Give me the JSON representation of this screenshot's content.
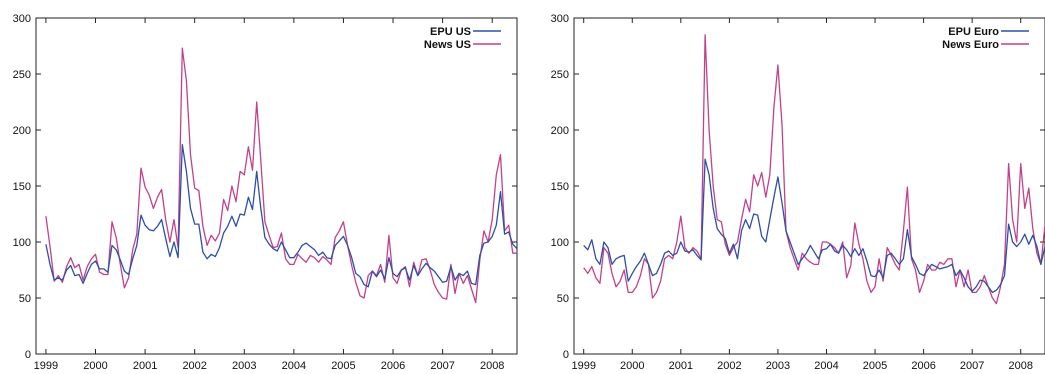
{
  "chart_data": [
    {
      "type": "line",
      "x_start": 1999.0,
      "x_step": 0.08333,
      "xlim": [
        1998.8,
        2008.5
      ],
      "ylim": [
        0,
        300
      ],
      "xticks": [
        1999,
        2000,
        2001,
        2002,
        2003,
        2004,
        2005,
        2006,
        2007,
        2008
      ],
      "yticks": [
        0,
        50,
        100,
        150,
        200,
        250,
        300
      ],
      "xtick_labels": [
        "1999",
        "2000",
        "2001",
        "2002",
        "2003",
        "2004",
        "2005",
        "2006",
        "2007",
        "2008"
      ],
      "ytick_labels": [
        "0",
        "50",
        "100",
        "150",
        "200",
        "250",
        "300"
      ],
      "grid": false,
      "legend_position": "top-right",
      "series": [
        {
          "name": "EPU US",
          "color": "#2e4fa8",
          "values": [
            98,
            80,
            66,
            68,
            66,
            75,
            79,
            70,
            71,
            63,
            72,
            80,
            83,
            76,
            76,
            73,
            97,
            93,
            84,
            74,
            71,
            85,
            97,
            124,
            115,
            111,
            110,
            114,
            120,
            103,
            87,
            100,
            86,
            187,
            163,
            130,
            116,
            116,
            91,
            85,
            89,
            87,
            95,
            108,
            114,
            123,
            114,
            125,
            124,
            140,
            129,
            163,
            130,
            104,
            98,
            94,
            92,
            100,
            93,
            86,
            86,
            91,
            97,
            99,
            96,
            93,
            88,
            91,
            86,
            85,
            97,
            101,
            105,
            97,
            86,
            72,
            69,
            62,
            60,
            74,
            69,
            75,
            67,
            86,
            72,
            69,
            75,
            77,
            66,
            79,
            70,
            76,
            81,
            77,
            74,
            69,
            64,
            65,
            78,
            66,
            72,
            70,
            74,
            63,
            62,
            88,
            99,
            100,
            105,
            115,
            145,
            107,
            109,
            98,
            94
          ]
        },
        {
          "name": "News US",
          "color": "#c2418a",
          "values": [
            123,
            96,
            65,
            70,
            64,
            78,
            86,
            77,
            80,
            66,
            78,
            85,
            89,
            73,
            71,
            71,
            118,
            104,
            80,
            59,
            68,
            93,
            107,
            166,
            149,
            142,
            130,
            140,
            147,
            120,
            100,
            120,
            95,
            273,
            244,
            178,
            148,
            146,
            114,
            97,
            106,
            101,
            108,
            138,
            128,
            150,
            136,
            163,
            160,
            185,
            164,
            225,
            173,
            118,
            106,
            95,
            96,
            108,
            85,
            80,
            80,
            89,
            85,
            82,
            88,
            86,
            82,
            87,
            84,
            80,
            104,
            110,
            118,
            97,
            79,
            64,
            52,
            50,
            70,
            74,
            70,
            80,
            64,
            106,
            68,
            63,
            75,
            78,
            60,
            82,
            70,
            84,
            85,
            75,
            62,
            55,
            50,
            49,
            80,
            54,
            72,
            63,
            70,
            58,
            46,
            84,
            110,
            100,
            120,
            160,
            178,
            110,
            115,
            90,
            90
          ]
        }
      ]
    },
    {
      "type": "line",
      "x_start": 1999.0,
      "x_step": 0.08333,
      "xlim": [
        1998.8,
        2008.5
      ],
      "ylim": [
        0,
        300
      ],
      "xticks": [
        1999,
        2000,
        2001,
        2002,
        2003,
        2004,
        2005,
        2006,
        2007,
        2008
      ],
      "yticks": [
        0,
        50,
        100,
        150,
        200,
        250,
        300
      ],
      "xtick_labels": [
        "1999",
        "2000",
        "2001",
        "2002",
        "2003",
        "2004",
        "2005",
        "2006",
        "2007",
        "2008"
      ],
      "ytick_labels": [
        "0",
        "50",
        "100",
        "150",
        "200",
        "250",
        "300"
      ],
      "grid": false,
      "legend_position": "top-right",
      "series": [
        {
          "name": "EPU Euro",
          "color": "#2e4fa8",
          "values": [
            97,
            93,
            102,
            85,
            80,
            100,
            95,
            80,
            85,
            87,
            88,
            65,
            72,
            78,
            83,
            90,
            80,
            70,
            72,
            80,
            90,
            92,
            88,
            90,
            100,
            92,
            91,
            93,
            88,
            84,
            174,
            160,
            130,
            112,
            107,
            103,
            90,
            98,
            85,
            110,
            120,
            112,
            125,
            124,
            105,
            100,
            120,
            140,
            158,
            135,
            110,
            100,
            90,
            80,
            85,
            90,
            97,
            91,
            85,
            93,
            94,
            98,
            92,
            90,
            97,
            93,
            87,
            94,
            88,
            94,
            83,
            70,
            69,
            75,
            68,
            88,
            90,
            85,
            80,
            85,
            111,
            87,
            80,
            72,
            70,
            75,
            80,
            78,
            76,
            77,
            78,
            80,
            70,
            75,
            68,
            60,
            56,
            60,
            66,
            65,
            60,
            55,
            57,
            62,
            70,
            116,
            100,
            96,
            100,
            107,
            98,
            106,
            96,
            80,
            96
          ]
        },
        {
          "name": "News Euro",
          "color": "#c2418a",
          "values": [
            77,
            72,
            78,
            68,
            63,
            95,
            90,
            72,
            60,
            65,
            75,
            55,
            55,
            60,
            70,
            85,
            80,
            50,
            55,
            65,
            85,
            88,
            85,
            100,
            123,
            95,
            90,
            95,
            92,
            85,
            285,
            200,
            150,
            120,
            118,
            98,
            88,
            95,
            100,
            120,
            138,
            127,
            160,
            150,
            162,
            140,
            160,
            220,
            258,
            205,
            110,
            95,
            85,
            75,
            90,
            85,
            82,
            80,
            80,
            100,
            100,
            98,
            95,
            90,
            100,
            68,
            79,
            117,
            98,
            85,
            65,
            55,
            60,
            85,
            65,
            95,
            88,
            80,
            75,
            110,
            149,
            85,
            75,
            55,
            65,
            80,
            75,
            75,
            82,
            80,
            85,
            85,
            60,
            75,
            60,
            75,
            55,
            55,
            60,
            70,
            60,
            50,
            45,
            60,
            80,
            170,
            120,
            100,
            170,
            130,
            148,
            112,
            90,
            80,
            115
          ]
        }
      ]
    }
  ]
}
